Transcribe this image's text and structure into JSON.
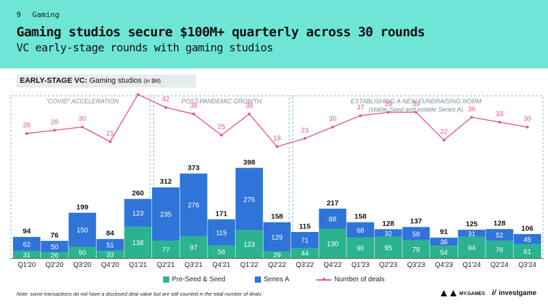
{
  "header": {
    "page_number": "9",
    "section": "Gaming",
    "title": "Gaming studios secure $100M+ quarterly across 30 rounds",
    "subtitle": "VC early-stage rounds with gaming studios"
  },
  "chart_label": {
    "main": "EARLY-STAGE VC:",
    "rest": " Gaming studios ",
    "unit": "(in $M)"
  },
  "note": "Note: some transactions do not have a disclosed deal value but are still counted in the total number of deals",
  "logos": {
    "mygames": "MY.GAMES",
    "investgame": "investgame"
  },
  "chart_data": {
    "type": "bar",
    "stacked": true,
    "categories": [
      "Q1'20",
      "Q2'20",
      "Q3'20",
      "Q4'20",
      "Q1'21",
      "Q2'21",
      "Q3'21",
      "Q4'21",
      "Q1'22",
      "Q2'22",
      "Q3'22",
      "Q4'22",
      "Q1'23",
      "Q2'23",
      "Q3'23",
      "Q4'23",
      "Q1'24",
      "Q2'24",
      "Q3'24"
    ],
    "series": [
      {
        "name": "Pre-Seed & Seed",
        "color": "#2bb38f",
        "values": [
          31,
          26,
          50,
          33,
          138,
          77,
          97,
          56,
          123,
          29,
          44,
          130,
          90,
          95,
          79,
          54,
          94,
          76,
          61
        ]
      },
      {
        "name": "Series A",
        "color": "#2f74d8",
        "values": [
          62,
          50,
          150,
          51,
          123,
          235,
          276,
          115,
          275,
          129,
          71,
          88,
          68,
          32,
          58,
          36,
          31,
          52,
          45
        ]
      }
    ],
    "totals": [
      94,
      76,
      199,
      84,
      260,
      312,
      373,
      171,
      398,
      158,
      115,
      217,
      158,
      128,
      137,
      91,
      125,
      128,
      106
    ],
    "line": {
      "name": "Number of deals",
      "color": "#e0569a",
      "values": [
        26,
        28,
        30,
        21,
        50,
        42,
        38,
        25,
        38,
        18,
        23,
        30,
        37,
        39,
        39,
        22,
        36,
        33,
        30
      ]
    },
    "periods": [
      {
        "label": "\"COVID\" ACCELERATION",
        "sublabel": "",
        "start": 0,
        "end": 4
      },
      {
        "label": "POST-PANDEMIC GROWTH",
        "sublabel": "",
        "start": 5,
        "end": 9
      },
      {
        "label": "ESTABLISHING A NEW FUNDRAISING NORM",
        "sublabel": "(stable Seed and volatile Series A)",
        "start": 10,
        "end": 18
      }
    ],
    "title": "",
    "xlabel": "",
    "ylabel": "",
    "grid": false,
    "legend_position": "bottom"
  }
}
